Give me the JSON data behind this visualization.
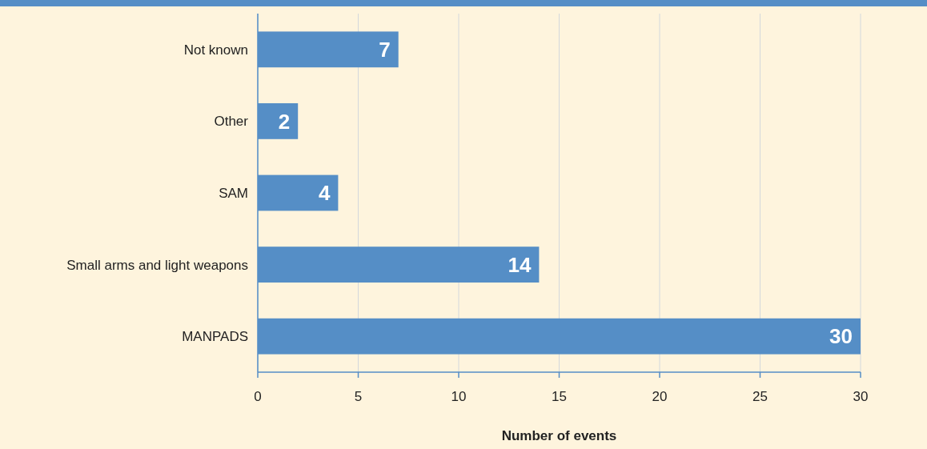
{
  "chart_data": {
    "type": "bar",
    "orientation": "horizontal",
    "categories": [
      "Not known",
      "Other",
      "SAM",
      "Small arms and light weapons",
      "MANPADS"
    ],
    "values": [
      7,
      2,
      4,
      14,
      30
    ],
    "color": "#558ec6",
    "xlabel": "Number of events",
    "xlim": [
      0,
      30
    ],
    "xticks": [
      0,
      5,
      10,
      15,
      20,
      25,
      30
    ],
    "grid": "x",
    "data_labels": true
  }
}
